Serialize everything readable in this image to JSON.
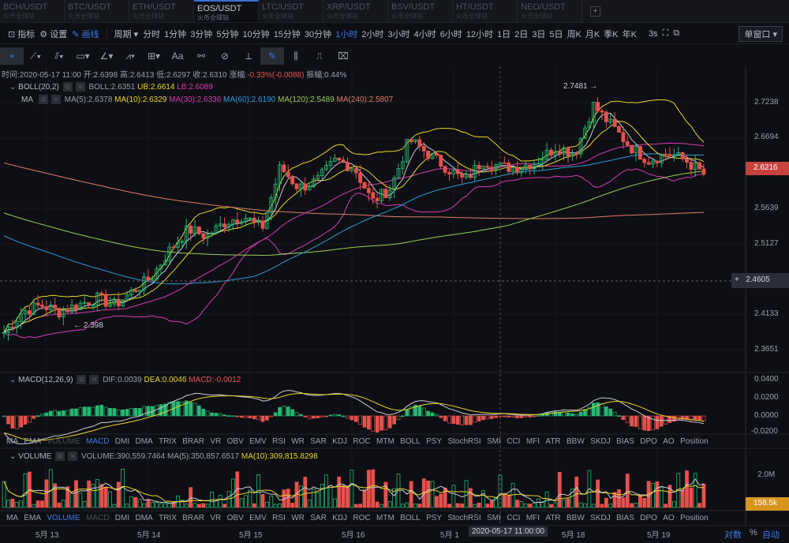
{
  "tabs": [
    {
      "pair": "BCH/USDT",
      "sub": "火币全球站"
    },
    {
      "pair": "BTC/USDT",
      "sub": "火币全球站"
    },
    {
      "pair": "ETH/USDT",
      "sub": "火币全球站"
    },
    {
      "pair": "EOS/USDT",
      "sub": "火币全球站",
      "active": true
    },
    {
      "pair": "LTC/USDT",
      "sub": "火币全球站"
    },
    {
      "pair": "XRP/USDT",
      "sub": "火币全球站"
    },
    {
      "pair": "BSV/USDT",
      "sub": "火币全球站"
    },
    {
      "pair": "HT/USDT",
      "sub": "火币全球站"
    },
    {
      "pair": "NEO/USDT",
      "sub": "火币全球站"
    }
  ],
  "add_tab": "+",
  "toolbar": {
    "indicators": "指标",
    "settings": "设置",
    "draw": "画线",
    "period": "周期",
    "periods": [
      "分时",
      "1分钟",
      "3分钟",
      "5分钟",
      "10分钟",
      "15分钟",
      "30分钟",
      "1小时",
      "2小时",
      "3小时",
      "4小时",
      "6小时",
      "12小时",
      "1日",
      "2日",
      "3日",
      "5日",
      "周K",
      "月K",
      "季K",
      "年K"
    ],
    "active_period": "1小时",
    "refresh": "3s",
    "window": "单窗口"
  },
  "info": {
    "time": "时间:2020-05-17 11:00",
    "open": "开:2.6398",
    "high": "高:2.6413",
    "low": "低:2.6297",
    "close": "收:2.6310",
    "change_label": "涨幅:",
    "change": "-0.33%(-0.0088)",
    "amp": "振幅:0.44%"
  },
  "boll": {
    "name": "BOLL(20,2)",
    "mid": "BOLL:2.6351",
    "ub": "UB:2.6614",
    "lb": "LB:2.6089"
  },
  "ma": {
    "name": "MA",
    "ma5": "MA(5):2.6378",
    "ma10": "MA(10):2.6329",
    "ma30": "MA(30):2.6336",
    "ma60": "MA(60):2.6190",
    "ma120": "MA(120):2.5489",
    "ma240": "MA(240):2.5807"
  },
  "price_axis": [
    "2.7238",
    "2.6694",
    "2.5639",
    "2.5127",
    "2.4133",
    "2.3651"
  ],
  "last_price": "2.6216",
  "crosshair_price": "2.4605",
  "high_mark": "2.7481 →",
  "low_mark": "← 2.398",
  "macd": {
    "name": "MACD(12,26,9)",
    "dif": "DIF:0.0039",
    "dea": "DEA:0.0046",
    "macd": "MACD:-0.0012",
    "axis": [
      "0.0400",
      "0.0200",
      "0.0000",
      "-0.0200"
    ]
  },
  "volume": {
    "name": "VOLUME",
    "vol": "VOLUME:390,559.7464",
    "ma5": "MA(5):350,857.6517",
    "ma10": "MA(10):309,815.8298",
    "axis": [
      "2.0M"
    ],
    "last": "158.5k"
  },
  "indicator_tabs": [
    "MA",
    "EMA",
    "VOLUME",
    "MACD",
    "DMI",
    "DMA",
    "TRIX",
    "BRAR",
    "VR",
    "OBV",
    "EMV",
    "RSI",
    "WR",
    "SAR",
    "KDJ",
    "ROC",
    "MTM",
    "BOLL",
    "PSY",
    "StochRSI",
    "SMI",
    "CCI",
    "MFI",
    "ATR",
    "BBW",
    "SKDJ",
    "BIAS",
    "DPO",
    "AO",
    "Position"
  ],
  "dates": [
    "5月 13",
    "5月 14",
    "5月 15",
    "5月 16",
    "5月 1",
    "5月 18",
    "5月 19"
  ],
  "crosshair_time": "2020-05-17 11:00:00",
  "scale": {
    "log": "对数",
    "pct": "%",
    "auto": "自动"
  },
  "colors": {
    "up": "#26b872",
    "down": "#e8514d",
    "ma5": "#c9ccd3",
    "ma10": "#e6d62a",
    "ma30": "#d23fb0",
    "ma60": "#2f9ad6",
    "ma120": "#9acd5a",
    "ma240": "#e07a6a",
    "accent": "#3f7ae8"
  },
  "chart_data": {
    "type": "candlestick",
    "interval": "1小时",
    "close_approx_every_6h": [
      2.39,
      2.42,
      2.43,
      2.42,
      2.43,
      2.44,
      2.43,
      2.45,
      2.47,
      2.51,
      2.54,
      2.53,
      2.55,
      2.56,
      2.54,
      2.63,
      2.6,
      2.61,
      2.64,
      2.63,
      2.58,
      2.6,
      2.67,
      2.65,
      2.63,
      2.61,
      2.64,
      2.63,
      2.63,
      2.64,
      2.66,
      2.65,
      2.72,
      2.69,
      2.66,
      2.64,
      2.65,
      2.64,
      2.62
    ],
    "ylim": [
      2.33,
      2.77
    ]
  }
}
